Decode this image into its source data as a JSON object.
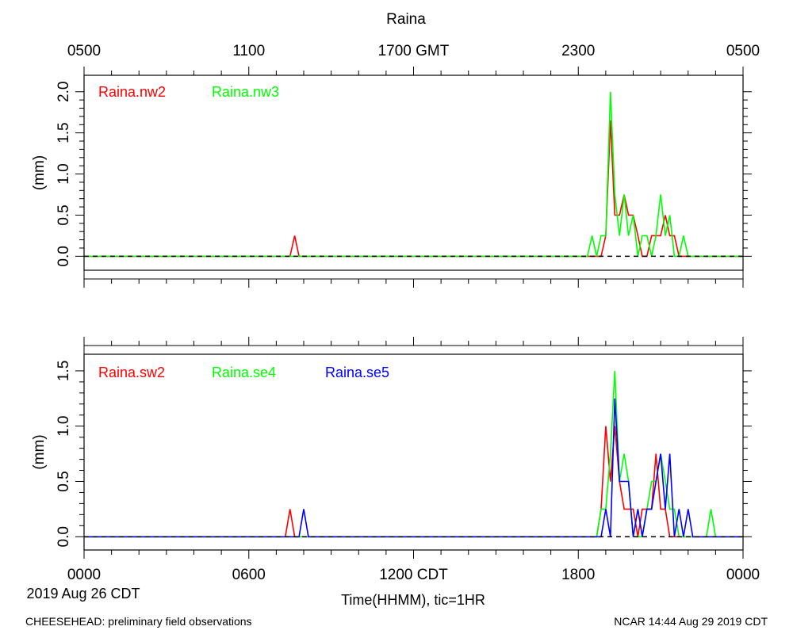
{
  "title": "Raina",
  "top_axis_ticks": [
    "0500",
    "1100",
    "1700 GMT",
    "2300",
    "0500"
  ],
  "bottom_axis_ticks": [
    "0000",
    "0600",
    "1200 CDT",
    "1800",
    "0000"
  ],
  "date_label": "2019 Aug 26 CDT",
  "xlabel": "Time(HHMM), tic=1HR",
  "footer_left": "CHEESEHEAD: preliminary field observations",
  "footer_right": "NCAR 14:44 Aug 29 2019 CDT",
  "colors": {
    "red": "#ff0000",
    "green": "#00ff00",
    "blue": "#0000ff"
  },
  "chart_data": [
    {
      "type": "line",
      "ylabel": "(mm)",
      "ylim": [
        -0.17,
        2.2
      ],
      "yticks": [
        0.0,
        0.5,
        1.0,
        1.5,
        2.0
      ],
      "ytick_labels": [
        "0.0",
        "0.5",
        "1.0",
        "1.5",
        "2.0"
      ],
      "xlim_hours": [
        0,
        24
      ],
      "series": [
        {
          "name": "Raina.nw2",
          "color": "red",
          "points": [
            [
              0,
              0
            ],
            [
              7.5,
              0
            ],
            [
              7.67,
              0.25
            ],
            [
              7.83,
              0
            ],
            [
              18.83,
              0
            ],
            [
              19.0,
              0.25
            ],
            [
              19.17,
              1.65
            ],
            [
              19.33,
              0.5
            ],
            [
              19.5,
              0.5
            ],
            [
              19.67,
              0.75
            ],
            [
              19.83,
              0.5
            ],
            [
              20.0,
              0.5
            ],
            [
              20.17,
              0.25
            ],
            [
              20.33,
              0
            ],
            [
              20.5,
              0
            ],
            [
              20.67,
              0.25
            ],
            [
              20.83,
              0.25
            ],
            [
              21.0,
              0.25
            ],
            [
              21.17,
              0.5
            ],
            [
              21.33,
              0.25
            ],
            [
              21.5,
              0.25
            ],
            [
              21.67,
              0
            ],
            [
              24,
              0
            ]
          ]
        },
        {
          "name": "Raina.nw3",
          "color": "green",
          "points": [
            [
              0,
              0
            ],
            [
              18.33,
              0
            ],
            [
              18.5,
              0.25
            ],
            [
              18.67,
              0
            ],
            [
              18.83,
              0.25
            ],
            [
              19.0,
              0.25
            ],
            [
              19.17,
              2.0
            ],
            [
              19.33,
              0.75
            ],
            [
              19.5,
              0.25
            ],
            [
              19.67,
              0.75
            ],
            [
              19.83,
              0.25
            ],
            [
              20.0,
              0.5
            ],
            [
              20.17,
              0
            ],
            [
              20.33,
              0.25
            ],
            [
              20.5,
              0.25
            ],
            [
              20.67,
              0
            ],
            [
              20.83,
              0.25
            ],
            [
              21.0,
              0.75
            ],
            [
              21.17,
              0.25
            ],
            [
              21.33,
              0.5
            ],
            [
              21.5,
              0
            ],
            [
              21.67,
              0
            ],
            [
              21.83,
              0.25
            ],
            [
              22.0,
              0
            ],
            [
              24,
              0
            ]
          ]
        }
      ]
    },
    {
      "type": "line",
      "ylabel": "(mm)",
      "ylim": [
        -0.12,
        1.65
      ],
      "yticks": [
        0.0,
        0.5,
        1.0,
        1.5
      ],
      "ytick_labels": [
        "0.0",
        "0.5",
        "1.0",
        "1.5"
      ],
      "xlim_hours": [
        0,
        24
      ],
      "series": [
        {
          "name": "Raina.sw2",
          "color": "red",
          "points": [
            [
              0,
              0
            ],
            [
              7.33,
              0
            ],
            [
              7.5,
              0.25
            ],
            [
              7.67,
              0
            ],
            [
              18.67,
              0
            ],
            [
              18.83,
              0.25
            ],
            [
              19.0,
              1.0
            ],
            [
              19.17,
              0.5
            ],
            [
              19.33,
              1.0
            ],
            [
              19.5,
              0.5
            ],
            [
              19.67,
              0.25
            ],
            [
              19.83,
              0.25
            ],
            [
              20.0,
              0.25
            ],
            [
              20.17,
              0
            ],
            [
              20.33,
              0.25
            ],
            [
              20.5,
              0.25
            ],
            [
              20.67,
              0.25
            ],
            [
              20.83,
              0.75
            ],
            [
              21.0,
              0.25
            ],
            [
              21.17,
              0.25
            ],
            [
              21.33,
              0
            ],
            [
              24,
              0
            ]
          ]
        },
        {
          "name": "Raina.se4",
          "color": "green",
          "points": [
            [
              0,
              0
            ],
            [
              18.67,
              0
            ],
            [
              18.83,
              0.25
            ],
            [
              19.0,
              0.25
            ],
            [
              19.17,
              0.75
            ],
            [
              19.33,
              1.5
            ],
            [
              19.5,
              0.5
            ],
            [
              19.67,
              0.75
            ],
            [
              19.83,
              0.5
            ],
            [
              20.0,
              0
            ],
            [
              20.17,
              0
            ],
            [
              20.33,
              0
            ],
            [
              20.5,
              0.25
            ],
            [
              20.67,
              0.5
            ],
            [
              20.83,
              0.5
            ],
            [
              21.0,
              0.75
            ],
            [
              21.17,
              0.5
            ],
            [
              21.33,
              0.25
            ],
            [
              21.5,
              0.25
            ],
            [
              21.67,
              0
            ],
            [
              22.67,
              0
            ],
            [
              22.83,
              0.25
            ],
            [
              23.0,
              0
            ],
            [
              24,
              0
            ]
          ]
        },
        {
          "name": "Raina.se5",
          "color": "blue",
          "points": [
            [
              0,
              0
            ],
            [
              7.83,
              0
            ],
            [
              8.0,
              0.25
            ],
            [
              8.17,
              0
            ],
            [
              18.83,
              0
            ],
            [
              19.0,
              0.25
            ],
            [
              19.17,
              0
            ],
            [
              19.33,
              1.25
            ],
            [
              19.5,
              0.5
            ],
            [
              19.67,
              0.5
            ],
            [
              19.83,
              0.5
            ],
            [
              20.0,
              0
            ],
            [
              20.17,
              0.25
            ],
            [
              20.33,
              0
            ],
            [
              20.5,
              0.25
            ],
            [
              20.67,
              0.25
            ],
            [
              20.83,
              0.5
            ],
            [
              21.0,
              0.75
            ],
            [
              21.17,
              0.25
            ],
            [
              21.33,
              0.75
            ],
            [
              21.5,
              0
            ],
            [
              21.67,
              0.25
            ],
            [
              21.83,
              0
            ],
            [
              22.0,
              0.25
            ],
            [
              22.17,
              0
            ],
            [
              24,
              0
            ]
          ]
        }
      ]
    }
  ]
}
